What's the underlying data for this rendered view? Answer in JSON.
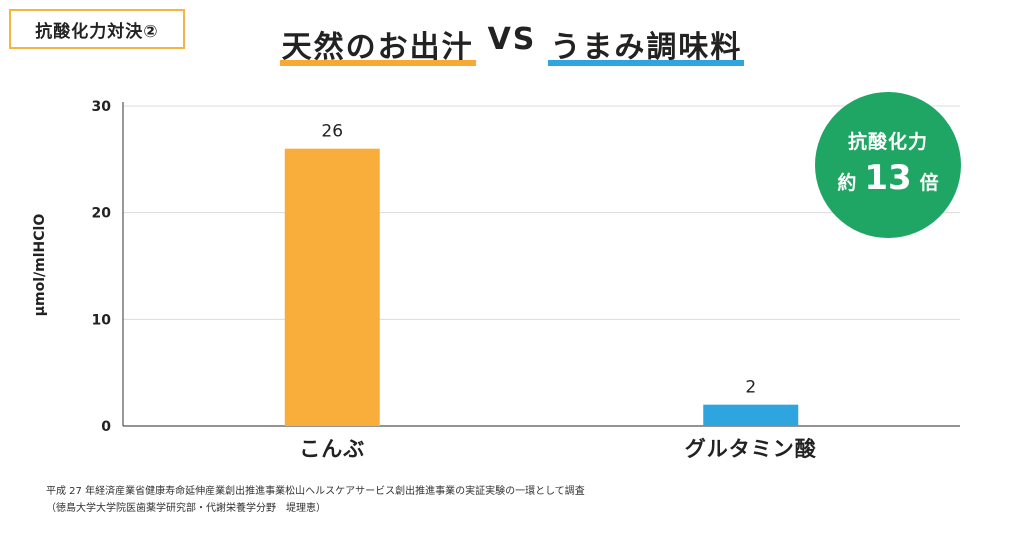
{
  "badge": "抗酸化力対決②",
  "title": {
    "left": "天然のお出汁",
    "vs": "VS",
    "right": "うまみ調味料",
    "left_color": "#F7A933",
    "right_color": "#2EA5DE"
  },
  "callout": {
    "line1": "抗酸化力",
    "prefix": "約",
    "value": "13",
    "suffix": "倍",
    "color": "#1FA564"
  },
  "chart_data": {
    "type": "bar",
    "categories": [
      "こんぶ",
      "グルタミン酸"
    ],
    "values": [
      26,
      2
    ],
    "value_labels": [
      "26",
      "2"
    ],
    "colors": [
      "#F9AE3B",
      "#2EA5DE"
    ],
    "ylabel": "μmol/mlHClO",
    "ylim": [
      0,
      30
    ],
    "yticks": [
      0,
      10,
      20,
      30
    ],
    "grid": true
  },
  "footnotes": [
    "平成 27 年経済産業省健康寿命延伸産業創出推進事業松山ヘルスケアサービス創出推進事業の実証実験の一環として調査",
    "（徳島大学大学院医歯薬学研究部・代謝栄養学分野　堤理恵）"
  ]
}
